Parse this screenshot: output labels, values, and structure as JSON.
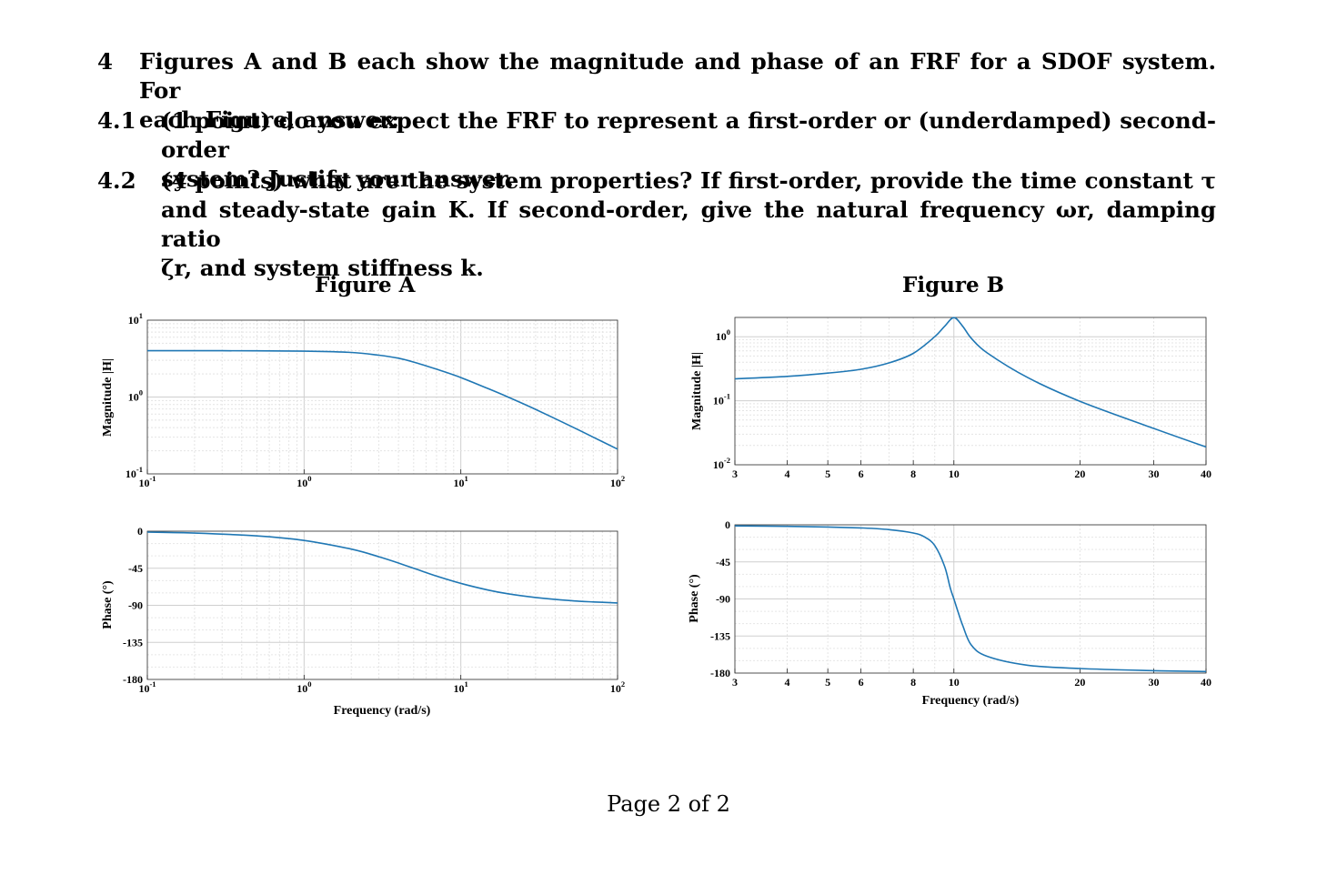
{
  "question": {
    "number": "4",
    "intro_line1": "Figures A and B each show the magnitude and phase of an FRF for a SDOF system. For",
    "intro_line2": "each Figure, answer:",
    "parts": [
      {
        "number": "4.1",
        "line1": "(1 point) do you expect the FRF to represent a first-order or (underdamped) second-order",
        "line2": "system? Justify your answer."
      },
      {
        "number": "4.2",
        "line1": "(4 points) what are the system properties? If first-order, provide the time constant τ",
        "line2": "and steady-state gain K. If second-order, give the natural frequency ωr, damping ratio",
        "line3": "ζr, and system stiffness k."
      }
    ]
  },
  "figures": [
    {
      "title": "Figure A"
    },
    {
      "title": "Figure B"
    }
  ],
  "footer": "Page 2 of 2",
  "chart_data": [
    {
      "name": "Figure A magnitude",
      "type": "line",
      "x_scale": "log",
      "y_scale": "log",
      "xlim": [
        0.1,
        100
      ],
      "ylim": [
        0.1,
        10
      ],
      "x_ticks": [
        "10-1",
        "10^0",
        "10^1",
        "10^2"
      ],
      "y_ticks": [
        "10-1",
        "10^0",
        "10^1"
      ],
      "ylabel": "Magnitude |H|",
      "grid": true,
      "line_color": "#1f77b4",
      "x": [
        0.1,
        0.3,
        1,
        2,
        3,
        4,
        5,
        7,
        10,
        15,
        20,
        30,
        50,
        70,
        100
      ],
      "y": [
        4.0,
        4.0,
        3.95,
        3.8,
        3.5,
        3.2,
        2.85,
        2.3,
        1.79,
        1.28,
        1.0,
        0.69,
        0.42,
        0.3,
        0.21
      ]
    },
    {
      "name": "Figure A phase",
      "type": "line",
      "x_scale": "log",
      "y_scale": "linear",
      "xlim": [
        0.1,
        100
      ],
      "ylim": [
        -180,
        0
      ],
      "x_ticks": [
        "10-1",
        "10^0",
        "10^1",
        "10^2"
      ],
      "y_ticks": [
        "0",
        "-45",
        "-90",
        "-135",
        "-180"
      ],
      "xlabel": "Frequency (rad/s)",
      "ylabel": "Phase (°)",
      "grid": true,
      "line_color": "#1f77b4",
      "x": [
        0.1,
        0.2,
        0.5,
        1,
        2,
        3,
        4,
        5,
        7,
        10,
        15,
        20,
        30,
        50,
        70,
        100
      ],
      "y": [
        -1.1,
        -2.3,
        -5.7,
        -11.3,
        -21.8,
        -31.0,
        -38.7,
        -45.0,
        -54.5,
        -63.4,
        -71.6,
        -76.0,
        -80.5,
        -84.3,
        -85.9,
        -87.1
      ]
    },
    {
      "name": "Figure B magnitude",
      "type": "line",
      "x_scale": "log",
      "y_scale": "log",
      "xlim": [
        3,
        40
      ],
      "ylim": [
        0.01,
        2
      ],
      "x_ticks": [
        "3",
        "4",
        "5",
        "6",
        "8",
        "10",
        "20",
        "30",
        "40"
      ],
      "y_ticks": [
        "10-2",
        "10-1",
        "10^0"
      ],
      "ylabel": "Magnitude |H|",
      "grid": true,
      "line_color": "#1f77b4",
      "x": [
        3,
        4,
        5,
        6,
        7,
        8,
        9,
        9.5,
        10,
        10.5,
        11,
        12,
        15,
        20,
        30,
        40
      ],
      "y": [
        0.22,
        0.24,
        0.27,
        0.31,
        0.39,
        0.55,
        1.0,
        1.45,
        1.99,
        1.45,
        0.95,
        0.56,
        0.23,
        0.098,
        0.037,
        0.019
      ]
    },
    {
      "name": "Figure B phase",
      "type": "line",
      "x_scale": "log",
      "y_scale": "linear",
      "xlim": [
        3,
        40
      ],
      "ylim": [
        -180,
        0
      ],
      "x_ticks": [
        "3",
        "4",
        "5",
        "6",
        "8",
        "10",
        "20",
        "30",
        "40"
      ],
      "y_ticks": [
        "0",
        "-45",
        "-90",
        "-135",
        "-180"
      ],
      "xlabel": "Frequency (rad/s)",
      "ylabel": "Phase (°)",
      "grid": true,
      "line_color": "#1f77b4",
      "x": [
        3,
        4,
        5,
        6,
        7,
        8,
        8.5,
        9,
        9.5,
        9.8,
        10,
        10.2,
        10.5,
        11,
        12,
        15,
        20,
        30,
        40
      ],
      "y": [
        -1.3,
        -1.9,
        -2.7,
        -3.8,
        -5.8,
        -9.9,
        -14.6,
        -25.1,
        -50.3,
        -76.4,
        -90,
        -103.6,
        -122.3,
        -145.8,
        -159.6,
        -170.5,
        -174.5,
        -177.1,
        -178.1
      ]
    }
  ]
}
